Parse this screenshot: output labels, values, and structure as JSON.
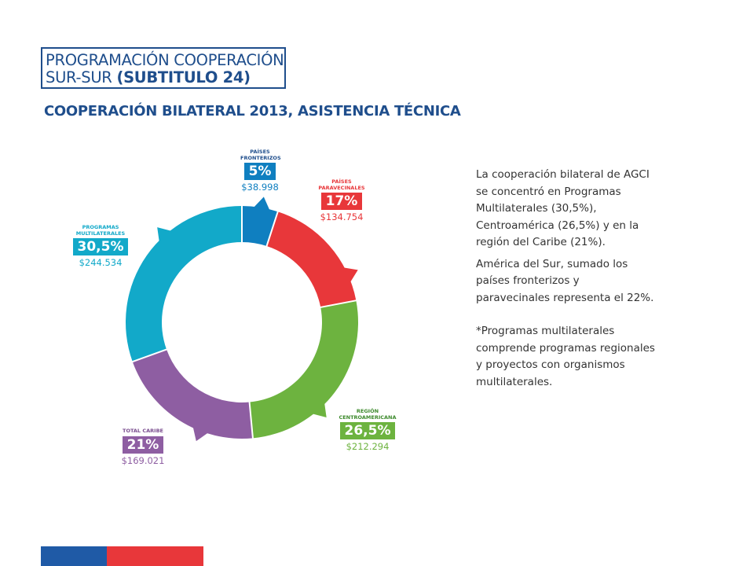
{
  "header": {
    "line1": "PROGRAMACIÓN COOPERACIÓN",
    "line2_regular": "SUR-SUR",
    "line2_bold": "(SUBTITULO 24)"
  },
  "subtitle": "COOPERACIÓN BILATERAL 2013, ASISTENCIA TÉCNICA",
  "chart_data": {
    "type": "pie",
    "variant": "donut",
    "title": "COOPERACIÓN BILATERAL 2013, ASISTENCIA TÉCNICA",
    "categories": [
      "PAÍSES FRONTERIZOS",
      "PAÍSES PARAVECINALES",
      "REGIÓN CENTROAMERICANA",
      "TOTAL CARIBE",
      "PROGRAMAS MULTILATERALES"
    ],
    "values": [
      5,
      17,
      26.5,
      21,
      30.5
    ],
    "percent_labels": [
      "5%",
      "17%",
      "26,5%",
      "21%",
      "30,5%"
    ],
    "amounts": [
      "$38.998",
      "$134.754",
      "$212.294",
      "$169.021",
      "$244.534"
    ],
    "colors": [
      "#0f7fc0",
      "#e8373a",
      "#6db33f",
      "#8e5ea2",
      "#12a9c9"
    ]
  },
  "description": {
    "p1": "La cooperación bilateral de AGCI se concentró en Programas Multilaterales (30,5%), Centroamérica (26,5%) y en la región del Caribe (21%).",
    "p2": "América del Sur, sumado los países fronterizos y paravecinales representa el 22%.",
    "p3": "*Programas multilaterales comprende programas regionales y  proyectos con organismos multilaterales."
  },
  "footer_colors": [
    "#1f5aa6",
    "#e8373a"
  ]
}
